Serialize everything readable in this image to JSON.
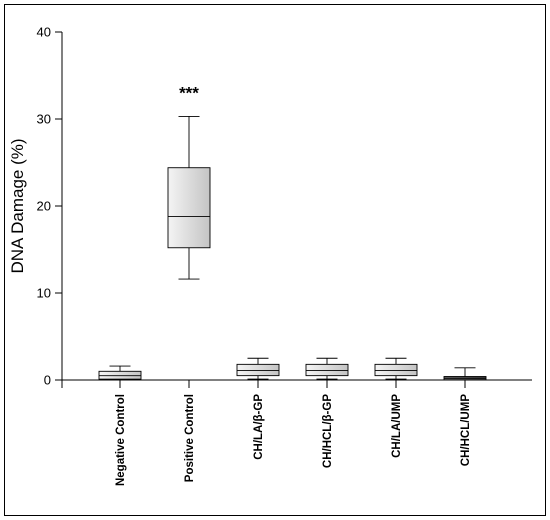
{
  "chart_data": {
    "type": "box",
    "ylabel": "DNA Damage (%)",
    "ylim": [
      0,
      40
    ],
    "yticks": [
      0,
      10,
      20,
      30,
      40
    ],
    "grid": false,
    "categories": [
      "Negative Control",
      "Positive Control",
      "CH/LA/β-GP",
      "CH/HCL/β-GP",
      "CH/LA/UMP",
      "CH/HCL/UMP"
    ],
    "boxes": [
      {
        "category": "Negative Control",
        "whisker_low": 0.0,
        "q1": 0.1,
        "median": 0.5,
        "q3": 1.0,
        "whisker_high": 1.6,
        "shade": "light"
      },
      {
        "category": "Positive Control",
        "whisker_low": 11.6,
        "q1": 15.2,
        "median": 18.8,
        "q3": 24.4,
        "whisker_high": 30.3,
        "shade": "light"
      },
      {
        "category": "CH/LA/β-GP",
        "whisker_low": 0.1,
        "q1": 0.5,
        "median": 1.1,
        "q3": 1.8,
        "whisker_high": 2.5,
        "shade": "light"
      },
      {
        "category": "CH/HCL/β-GP",
        "whisker_low": 0.1,
        "q1": 0.5,
        "median": 1.1,
        "q3": 1.8,
        "whisker_high": 2.5,
        "shade": "light"
      },
      {
        "category": "CH/LA/UMP",
        "whisker_low": 0.1,
        "q1": 0.5,
        "median": 1.1,
        "q3": 1.8,
        "whisker_high": 2.5,
        "shade": "light"
      },
      {
        "category": "CH/HCL/UMP",
        "whisker_low": 0.0,
        "q1": 0.0,
        "median": 0.2,
        "q3": 0.4,
        "whisker_high": 1.4,
        "shade": "dark"
      }
    ],
    "annotations": [
      {
        "category": "Positive Control",
        "text": "***",
        "y": 33.5
      }
    ]
  }
}
